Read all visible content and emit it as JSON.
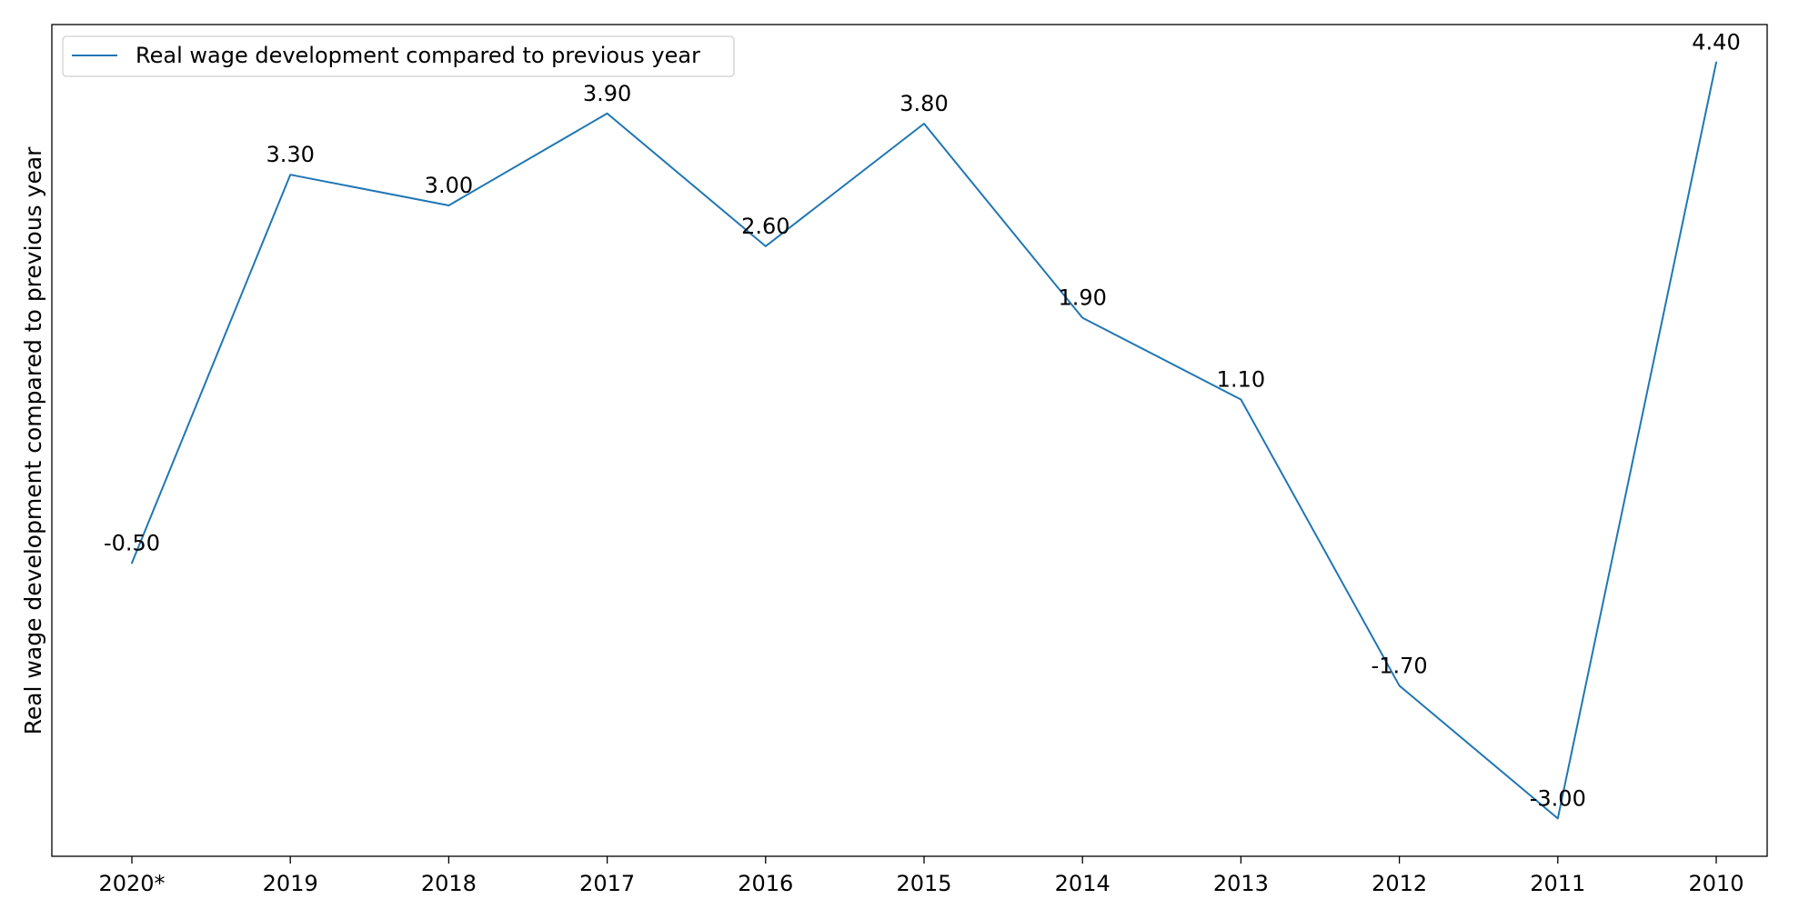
{
  "chart_data": {
    "type": "line",
    "categories": [
      "2020*",
      "2019",
      "2018",
      "2017",
      "2016",
      "2015",
      "2014",
      "2013",
      "2012",
      "2011",
      "2010"
    ],
    "series": [
      {
        "name": "Real wage development compared to previous year",
        "values": [
          -0.5,
          3.3,
          3.0,
          3.9,
          2.6,
          3.8,
          1.9,
          1.1,
          -1.7,
          -3.0,
          4.4
        ],
        "color": "#1f77b4"
      }
    ],
    "data_labels": [
      "-0.50",
      "3.30",
      "3.00",
      "3.90",
      "2.60",
      "3.80",
      "1.90",
      "1.10",
      "-1.70",
      "-3.00",
      "4.40"
    ],
    "title": "",
    "xlabel": "",
    "ylabel": "Real wage development compared to previous year",
    "ylim": [
      -3.37,
      4.77
    ],
    "y_ticks_shown": false,
    "grid": false,
    "legend_position": "top-left"
  }
}
